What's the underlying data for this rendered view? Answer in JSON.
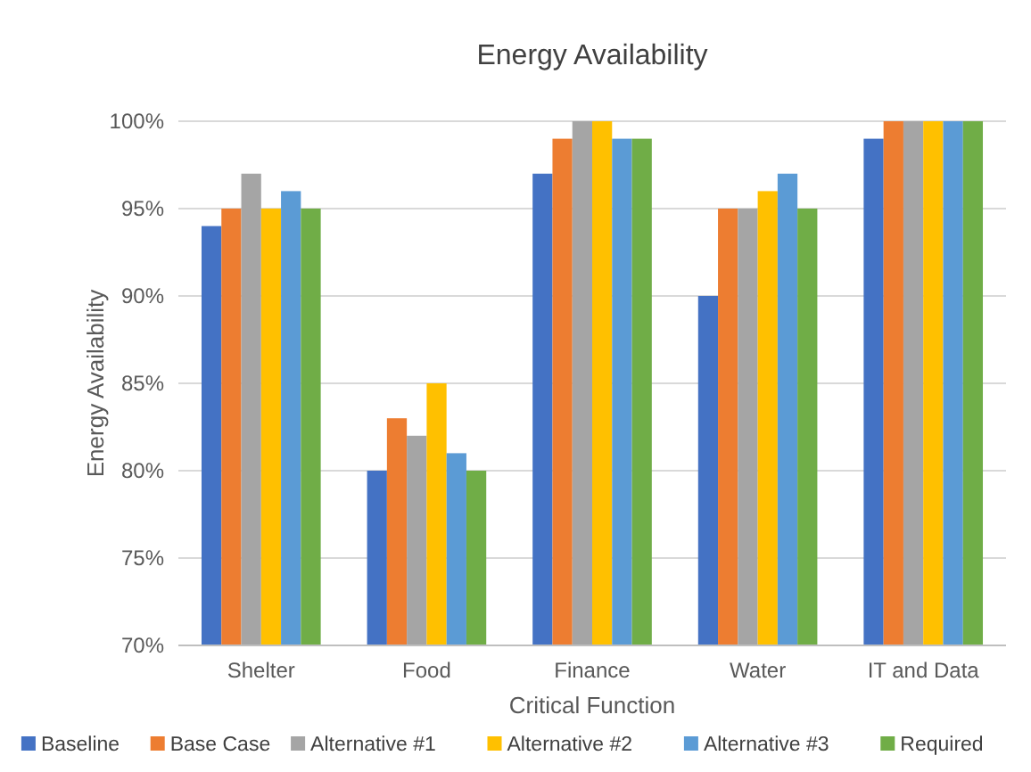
{
  "chart_data": {
    "type": "bar",
    "title": "Energy Availability",
    "xlabel": "Critical Function",
    "ylabel": "Energy Availability",
    "categories": [
      "Shelter",
      "Food",
      "Finance",
      "Water",
      "IT and Data"
    ],
    "series": [
      {
        "name": "Baseline",
        "color": "#4472c4",
        "values": [
          0.94,
          0.8,
          0.97,
          0.9,
          0.99
        ]
      },
      {
        "name": "Base Case",
        "color": "#ed7d31",
        "values": [
          0.95,
          0.83,
          0.99,
          0.95,
          1.0
        ]
      },
      {
        "name": "Alternative #1",
        "color": "#a5a5a5",
        "values": [
          0.97,
          0.82,
          1.0,
          0.95,
          1.0
        ]
      },
      {
        "name": "Alternative #2",
        "color": "#ffc000",
        "values": [
          0.95,
          0.85,
          1.0,
          0.96,
          1.0
        ]
      },
      {
        "name": "Alternative #3",
        "color": "#5b9bd5",
        "values": [
          0.96,
          0.81,
          0.99,
          0.97,
          1.0
        ]
      },
      {
        "name": "Required",
        "color": "#70ad47",
        "values": [
          0.95,
          0.8,
          0.99,
          0.95,
          1.0
        ]
      }
    ],
    "ylim": [
      0.7,
      1.0
    ],
    "yticks": [
      {
        "value": 0.7,
        "label": "70%"
      },
      {
        "value": 0.75,
        "label": "75%"
      },
      {
        "value": 0.8,
        "label": "80%"
      },
      {
        "value": 0.85,
        "label": "85%"
      },
      {
        "value": 0.9,
        "label": "90%"
      },
      {
        "value": 0.95,
        "label": "95%"
      },
      {
        "value": 1.0,
        "label": "100%"
      }
    ],
    "grid": "y",
    "legend": "bottom"
  }
}
